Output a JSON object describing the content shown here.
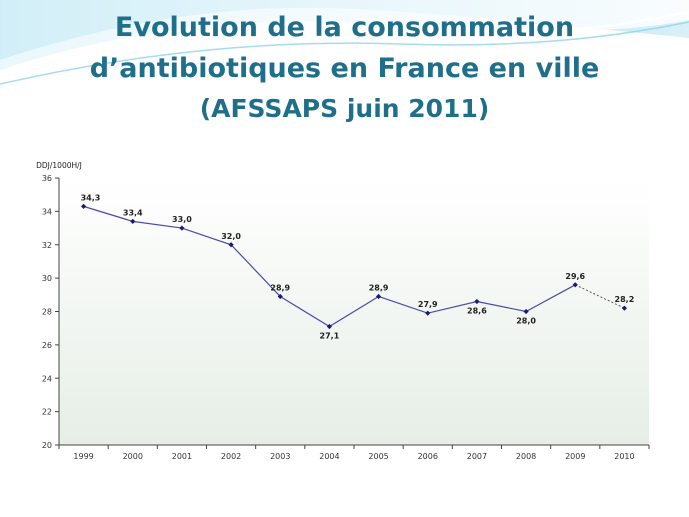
{
  "slide": {
    "title_line1": "Evolution de la consommation",
    "title_line2": "d’antibiotiques en France en ville",
    "title_line3": "(AFSSAPS juin 2011)"
  },
  "chart_data": {
    "type": "line",
    "ylabel": "DDJ/1000H/J",
    "ylim": [
      20,
      36
    ],
    "yticks": [
      20,
      22,
      24,
      26,
      28,
      30,
      32,
      34,
      36
    ],
    "categories": [
      "1999",
      "2000",
      "2001",
      "2002",
      "2003",
      "2004",
      "2005",
      "2006",
      "2007",
      "2008",
      "2009",
      "2010"
    ],
    "values": [
      34.3,
      33.4,
      33.0,
      32.0,
      28.9,
      27.1,
      28.9,
      27.9,
      28.6,
      28.0,
      29.6,
      28.2
    ],
    "data_labels": [
      "34,3",
      "33,4",
      "33,0",
      "32,0",
      "28,9",
      "27,1",
      "28,9",
      "27,9",
      "28,6",
      "28,0",
      "29,6",
      "28,2"
    ],
    "dashed_last_segment": true,
    "grid": false,
    "colors": {
      "line": "#4a4aa8",
      "marker": "#1a1a6e",
      "dashed": "#555555",
      "plot_bg_bottom": "#e6eee6"
    }
  }
}
